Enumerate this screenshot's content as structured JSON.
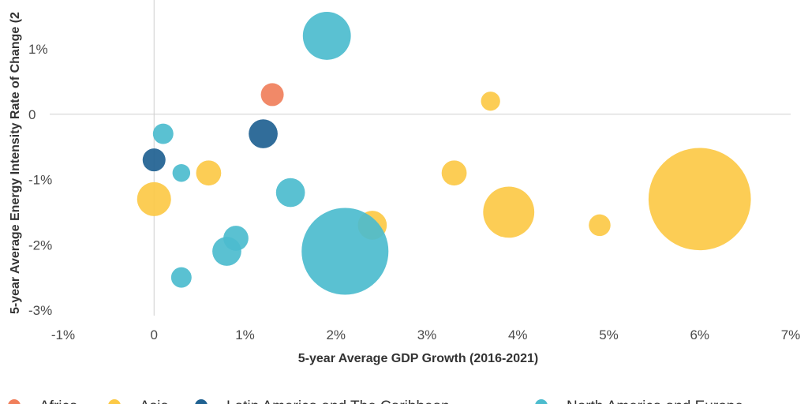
{
  "chart_data": {
    "type": "scatter",
    "xlabel": "5-year Average GDP Growth (2016-2021)",
    "ylabel": "5-year Average Energy Intensity Rate of Change (2",
    "xlim": [
      -0.01,
      0.07
    ],
    "ylim": [
      -0.03,
      0.019
    ],
    "x_ticks": [
      {
        "value": -0.01,
        "label": "-1%"
      },
      {
        "value": 0,
        "label": "0"
      },
      {
        "value": 0.01,
        "label": "1%"
      },
      {
        "value": 0.02,
        "label": "2%"
      },
      {
        "value": 0.03,
        "label": "3%"
      },
      {
        "value": 0.04,
        "label": "4%"
      },
      {
        "value": 0.05,
        "label": "5%"
      },
      {
        "value": 0.06,
        "label": "6%"
      },
      {
        "value": 0.07,
        "label": "7%"
      }
    ],
    "y_ticks": [
      {
        "value": 0.01,
        "label": "1%"
      },
      {
        "value": 0,
        "label": "0"
      },
      {
        "value": -0.01,
        "label": "-1%"
      },
      {
        "value": -0.02,
        "label": "-2%"
      },
      {
        "value": -0.03,
        "label": "-3%"
      }
    ],
    "grid": false,
    "legend_position": "bottom",
    "series": [
      {
        "name": "Africa",
        "color": "#F07F5B",
        "points": [
          {
            "x": 0.013,
            "y": 0.003,
            "size": 1
          }
        ]
      },
      {
        "name": "Asia",
        "color": "#FCC946",
        "points": [
          {
            "x": 0.037,
            "y": 0.002,
            "size": 0.7
          },
          {
            "x": 0.033,
            "y": -0.009,
            "size": 1.2
          },
          {
            "x": 0.039,
            "y": -0.015,
            "size": 5
          },
          {
            "x": 0.049,
            "y": -0.017,
            "size": 0.9
          },
          {
            "x": 0.06,
            "y": -0.013,
            "size": 20
          },
          {
            "x": 0.024,
            "y": -0.017,
            "size": 1.6
          },
          {
            "x": 0.006,
            "y": -0.009,
            "size": 1.2
          },
          {
            "x": 0.0,
            "y": -0.013,
            "size": 2.2
          }
        ]
      },
      {
        "name": "Latin America and The Caribbean",
        "color": "#1F6191",
        "points": [
          {
            "x": 0.012,
            "y": -0.003,
            "size": 1.6
          },
          {
            "x": 0.0,
            "y": -0.007,
            "size": 1
          }
        ]
      },
      {
        "name": "North America and Europe",
        "color": "#4CBCCE",
        "points": [
          {
            "x": 0.019,
            "y": 0.012,
            "size": 4.4
          },
          {
            "x": 0.001,
            "y": -0.003,
            "size": 0.8
          },
          {
            "x": 0.003,
            "y": -0.009,
            "size": 0.6
          },
          {
            "x": 0.015,
            "y": -0.012,
            "size": 1.6
          },
          {
            "x": 0.009,
            "y": -0.019,
            "size": 1.2
          },
          {
            "x": 0.008,
            "y": -0.021,
            "size": 1.6
          },
          {
            "x": 0.003,
            "y": -0.025,
            "size": 0.8
          },
          {
            "x": 0.021,
            "y": -0.021,
            "size": 14.4
          }
        ]
      }
    ]
  }
}
